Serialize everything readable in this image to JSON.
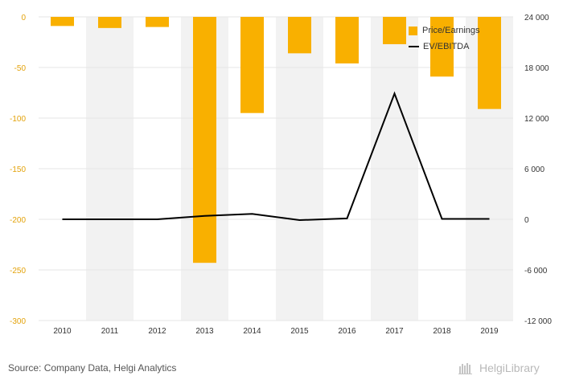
{
  "chart_data": {
    "type": "bar",
    "categories": [
      "2010",
      "2011",
      "2012",
      "2013",
      "2014",
      "2015",
      "2016",
      "2017",
      "2018",
      "2019"
    ],
    "series": [
      {
        "name": "Price/Earnings",
        "type": "bar",
        "axis": "left",
        "values": [
          -9,
          -11,
          -10,
          -243,
          -95,
          -36,
          -46,
          -27,
          -59,
          -91
        ]
      },
      {
        "name": "EV/EBITDA",
        "type": "line",
        "axis": "right",
        "values": [
          0,
          0,
          0,
          400,
          650,
          -100,
          100,
          14900,
          50,
          50
        ]
      }
    ],
    "left_axis": {
      "ylim": [
        -300,
        0
      ],
      "ticks": [
        0,
        -50,
        -100,
        -150,
        -200,
        -250,
        -300
      ],
      "tick_labels": [
        "0",
        "-50",
        "-100",
        "-150",
        "-200",
        "-250",
        "-300"
      ]
    },
    "right_axis": {
      "ylim": [
        -12000,
        24000
      ],
      "ticks": [
        24000,
        18000,
        12000,
        6000,
        0,
        -6000,
        -12000
      ],
      "tick_labels": [
        "24 000",
        "18 000",
        "12 000",
        "6 000",
        "0",
        "-6 000",
        "-12 000"
      ]
    },
    "grid": true,
    "legend_position": "top-right"
  },
  "colors": {
    "bar": "#F9B000",
    "line": "#000000",
    "left_tick": "#E3A20A",
    "right_tick": "#333333",
    "x_tick": "#333333",
    "grid": "#e6e6e6",
    "category_band": "#f2f2f2"
  },
  "legend": {
    "bar_label": "Price/Earnings",
    "line_label": "EV/EBITDA"
  },
  "footer": {
    "source": "Source: Company Data, Helgi Analytics",
    "logo_text": "HelgiLibrary"
  }
}
